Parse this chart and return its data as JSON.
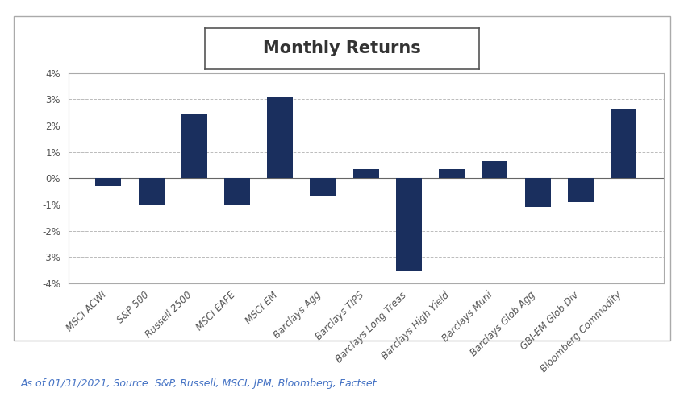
{
  "title": "Monthly Returns",
  "categories": [
    "MSCI ACWI",
    "S&P 500",
    "Russell 2500",
    "MSCI EAFE",
    "MSCI EM",
    "Barclays Agg",
    "Barclays TIPS",
    "Barclays Long Treas",
    "Barclays High Yield",
    "Barclays Muni",
    "Barclays Glob Agg",
    "GBI-EM Glob Div",
    "Bloomberg Commodity"
  ],
  "values": [
    -0.3,
    -1.0,
    2.42,
    -1.0,
    3.1,
    -0.7,
    0.35,
    -3.52,
    0.35,
    0.65,
    -1.1,
    -0.9,
    2.65
  ],
  "bar_color": "#1a2f5e",
  "ylim": [
    -4.0,
    4.0
  ],
  "yticks": [
    -4,
    -3,
    -2,
    -1,
    0,
    1,
    2,
    3,
    4
  ],
  "footnote": "As of 01/31/2021, Source: S&P, Russell, MSCI, JPM, Bloomberg, Factset",
  "background_color": "#ffffff",
  "title_fontsize": 15,
  "tick_fontsize": 8.5,
  "footnote_fontsize": 9,
  "footnote_color": "#4472c4",
  "outer_border_color": "#aaaaaa",
  "grid_color": "#bbbbbb",
  "spine_color": "#aaaaaa",
  "ytick_color": "#555555",
  "xtick_color": "#555555"
}
